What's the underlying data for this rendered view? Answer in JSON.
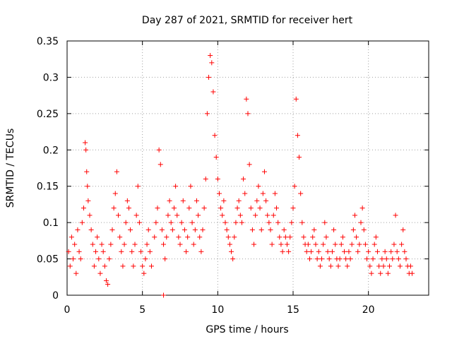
{
  "chart_data": {
    "type": "scatter",
    "title": "Day 287 of 2021, SRMTID for receiver hert",
    "xlabel": "GPS time / hours",
    "ylabel": "SRMTID / TECUs",
    "xlim": [
      0,
      24
    ],
    "ylim": [
      0,
      0.35
    ],
    "x_ticks": [
      0,
      5,
      10,
      15,
      20
    ],
    "x_tick_labels": [
      "0",
      "5",
      "10",
      "15",
      "20"
    ],
    "y_ticks": [
      0,
      0.05,
      0.1,
      0.15,
      0.2,
      0.25,
      0.3,
      0.35
    ],
    "y_tick_labels": [
      "0",
      "0.05",
      "0.1",
      "0.15",
      "0.2",
      "0.25",
      "0.3",
      "0.35"
    ],
    "grid": true,
    "marker": "+",
    "color": "#ff0000",
    "series": [
      {
        "name": "SRMTID",
        "points": [
          [
            0.1,
            0.06
          ],
          [
            0.2,
            0.04
          ],
          [
            0.3,
            0.08
          ],
          [
            0.4,
            0.05
          ],
          [
            0.5,
            0.07
          ],
          [
            0.6,
            0.03
          ],
          [
            0.7,
            0.09
          ],
          [
            0.8,
            0.06
          ],
          [
            0.9,
            0.05
          ],
          [
            1.0,
            0.1
          ],
          [
            1.1,
            0.12
          ],
          [
            1.2,
            0.21
          ],
          [
            1.25,
            0.2
          ],
          [
            1.3,
            0.17
          ],
          [
            1.35,
            0.15
          ],
          [
            1.4,
            0.13
          ],
          [
            1.5,
            0.11
          ],
          [
            1.6,
            0.09
          ],
          [
            1.7,
            0.07
          ],
          [
            1.8,
            0.04
          ],
          [
            1.9,
            0.06
          ],
          [
            2.0,
            0.08
          ],
          [
            2.1,
            0.05
          ],
          [
            2.2,
            0.03
          ],
          [
            2.3,
            0.07
          ],
          [
            2.4,
            0.06
          ],
          [
            2.5,
            0.04
          ],
          [
            2.6,
            0.02
          ],
          [
            2.7,
            0.015
          ],
          [
            2.8,
            0.05
          ],
          [
            2.9,
            0.07
          ],
          [
            3.0,
            0.09
          ],
          [
            3.1,
            0.12
          ],
          [
            3.2,
            0.14
          ],
          [
            3.3,
            0.17
          ],
          [
            3.4,
            0.11
          ],
          [
            3.5,
            0.08
          ],
          [
            3.6,
            0.06
          ],
          [
            3.7,
            0.04
          ],
          [
            3.8,
            0.07
          ],
          [
            3.9,
            0.1
          ],
          [
            4.0,
            0.13
          ],
          [
            4.1,
            0.12
          ],
          [
            4.2,
            0.09
          ],
          [
            4.3,
            0.06
          ],
          [
            4.4,
            0.04
          ],
          [
            4.5,
            0.07
          ],
          [
            4.6,
            0.11
          ],
          [
            4.7,
            0.15
          ],
          [
            4.8,
            0.1
          ],
          [
            4.9,
            0.06
          ],
          [
            5.0,
            0.04
          ],
          [
            5.1,
            0.03
          ],
          [
            5.2,
            0.05
          ],
          [
            5.3,
            0.07
          ],
          [
            5.4,
            0.09
          ],
          [
            5.5,
            0.06
          ],
          [
            5.6,
            0.04
          ],
          [
            5.8,
            0.08
          ],
          [
            5.9,
            0.1
          ],
          [
            6.0,
            0.12
          ],
          [
            6.1,
            0.2
          ],
          [
            6.2,
            0.18
          ],
          [
            6.3,
            0.09
          ],
          [
            6.4,
            0.07
          ],
          [
            6.5,
            0.05
          ],
          [
            6.6,
            0.08
          ],
          [
            6.7,
            0.11
          ],
          [
            6.8,
            0.13
          ],
          [
            6.9,
            0.1
          ],
          [
            7.0,
            0.09
          ],
          [
            7.1,
            0.12
          ],
          [
            7.2,
            0.15
          ],
          [
            7.3,
            0.11
          ],
          [
            7.4,
            0.08
          ],
          [
            7.5,
            0.07
          ],
          [
            7.6,
            0.1
          ],
          [
            7.7,
            0.13
          ],
          [
            7.8,
            0.09
          ],
          [
            7.9,
            0.06
          ],
          [
            8.0,
            0.08
          ],
          [
            8.1,
            0.12
          ],
          [
            8.2,
            0.15
          ],
          [
            8.3,
            0.1
          ],
          [
            8.4,
            0.07
          ],
          [
            8.5,
            0.09
          ],
          [
            8.6,
            0.13
          ],
          [
            8.7,
            0.11
          ],
          [
            8.8,
            0.08
          ],
          [
            8.9,
            0.06
          ],
          [
            9.0,
            0.09
          ],
          [
            9.1,
            0.12
          ],
          [
            9.2,
            0.16
          ],
          [
            9.3,
            0.25
          ],
          [
            9.4,
            0.3
          ],
          [
            9.5,
            0.33
          ],
          [
            9.6,
            0.32
          ],
          [
            9.7,
            0.28
          ],
          [
            9.8,
            0.22
          ],
          [
            9.9,
            0.19
          ],
          [
            10.0,
            0.16
          ],
          [
            10.1,
            0.14
          ],
          [
            10.2,
            0.12
          ],
          [
            10.3,
            0.11
          ],
          [
            10.4,
            0.13
          ],
          [
            10.5,
            0.1
          ],
          [
            10.6,
            0.09
          ],
          [
            10.7,
            0.08
          ],
          [
            10.8,
            0.07
          ],
          [
            10.9,
            0.06
          ],
          [
            11.0,
            0.05
          ],
          [
            11.1,
            0.08
          ],
          [
            11.2,
            0.1
          ],
          [
            11.3,
            0.12
          ],
          [
            11.4,
            0.13
          ],
          [
            11.5,
            0.11
          ],
          [
            11.6,
            0.1
          ],
          [
            11.7,
            0.16
          ],
          [
            11.8,
            0.14
          ],
          [
            11.9,
            0.27
          ],
          [
            12.0,
            0.25
          ],
          [
            12.1,
            0.18
          ],
          [
            12.2,
            0.12
          ],
          [
            12.3,
            0.09
          ],
          [
            12.4,
            0.07
          ],
          [
            12.5,
            0.11
          ],
          [
            12.6,
            0.13
          ],
          [
            12.7,
            0.15
          ],
          [
            12.8,
            0.12
          ],
          [
            12.9,
            0.09
          ],
          [
            13.0,
            0.14
          ],
          [
            13.1,
            0.17
          ],
          [
            13.2,
            0.13
          ],
          [
            13.3,
            0.11
          ],
          [
            13.4,
            0.1
          ],
          [
            13.5,
            0.09
          ],
          [
            13.6,
            0.07
          ],
          [
            13.7,
            0.11
          ],
          [
            13.8,
            0.14
          ],
          [
            13.9,
            0.12
          ],
          [
            14.0,
            0.1
          ],
          [
            14.1,
            0.08
          ],
          [
            14.2,
            0.07
          ],
          [
            14.3,
            0.06
          ],
          [
            14.4,
            0.09
          ],
          [
            14.5,
            0.08
          ],
          [
            14.6,
            0.07
          ],
          [
            14.7,
            0.06
          ],
          [
            14.8,
            0.08
          ],
          [
            14.9,
            0.1
          ],
          [
            15.0,
            0.12
          ],
          [
            15.1,
            0.15
          ],
          [
            15.2,
            0.27
          ],
          [
            15.3,
            0.22
          ],
          [
            15.4,
            0.19
          ],
          [
            15.5,
            0.14
          ],
          [
            15.6,
            0.1
          ],
          [
            15.7,
            0.08
          ],
          [
            15.8,
            0.07
          ],
          [
            15.9,
            0.06
          ],
          [
            16.0,
            0.07
          ],
          [
            16.1,
            0.05
          ],
          [
            16.2,
            0.06
          ],
          [
            16.3,
            0.08
          ],
          [
            16.4,
            0.09
          ],
          [
            16.5,
            0.07
          ],
          [
            16.6,
            0.05
          ],
          [
            16.7,
            0.06
          ],
          [
            16.8,
            0.04
          ],
          [
            16.9,
            0.05
          ],
          [
            17.0,
            0.07
          ],
          [
            17.1,
            0.1
          ],
          [
            17.2,
            0.08
          ],
          [
            17.3,
            0.06
          ],
          [
            17.4,
            0.05
          ],
          [
            17.5,
            0.04
          ],
          [
            17.6,
            0.06
          ],
          [
            17.7,
            0.09
          ],
          [
            17.8,
            0.07
          ],
          [
            17.9,
            0.05
          ],
          [
            18.0,
            0.04
          ],
          [
            18.1,
            0.05
          ],
          [
            18.2,
            0.07
          ],
          [
            18.3,
            0.08
          ],
          [
            18.4,
            0.06
          ],
          [
            18.5,
            0.05
          ],
          [
            18.6,
            0.04
          ],
          [
            18.7,
            0.06
          ],
          [
            18.8,
            0.05
          ],
          [
            18.9,
            0.07
          ],
          [
            19.0,
            0.09
          ],
          [
            19.1,
            0.11
          ],
          [
            19.2,
            0.08
          ],
          [
            19.3,
            0.06
          ],
          [
            19.4,
            0.07
          ],
          [
            19.5,
            0.1
          ],
          [
            19.6,
            0.12
          ],
          [
            19.7,
            0.09
          ],
          [
            19.8,
            0.07
          ],
          [
            19.9,
            0.05
          ],
          [
            20.0,
            0.06
          ],
          [
            20.1,
            0.04
          ],
          [
            20.2,
            0.03
          ],
          [
            20.3,
            0.05
          ],
          [
            20.4,
            0.07
          ],
          [
            20.5,
            0.08
          ],
          [
            20.6,
            0.06
          ],
          [
            20.7,
            0.04
          ],
          [
            20.8,
            0.03
          ],
          [
            20.9,
            0.05
          ],
          [
            21.0,
            0.04
          ],
          [
            21.1,
            0.06
          ],
          [
            21.2,
            0.05
          ],
          [
            21.3,
            0.03
          ],
          [
            21.4,
            0.04
          ],
          [
            21.5,
            0.06
          ],
          [
            21.6,
            0.05
          ],
          [
            21.7,
            0.07
          ],
          [
            21.8,
            0.11
          ],
          [
            21.9,
            0.06
          ],
          [
            22.0,
            0.05
          ],
          [
            22.1,
            0.04
          ],
          [
            22.2,
            0.07
          ],
          [
            22.3,
            0.09
          ],
          [
            22.4,
            0.06
          ],
          [
            22.5,
            0.05
          ],
          [
            22.6,
            0.04
          ],
          [
            22.7,
            0.03
          ],
          [
            22.8,
            0.04
          ],
          [
            22.9,
            0.03
          ],
          [
            6.4,
            0.0
          ]
        ]
      }
    ]
  }
}
